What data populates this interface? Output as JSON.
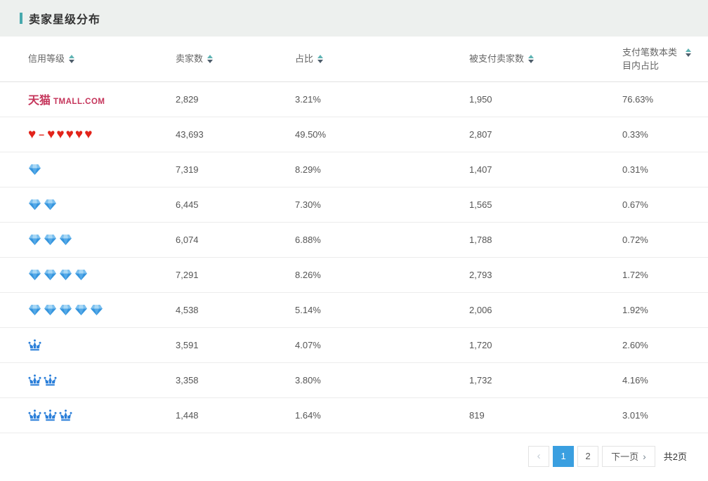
{
  "page": {
    "title": "卖家星级分布",
    "accent_color": "#47a9ad"
  },
  "table": {
    "headers": [
      {
        "label": "信用等级",
        "sortable": true
      },
      {
        "label": "卖家数",
        "sortable": true
      },
      {
        "label": "占比",
        "sortable": true
      },
      {
        "label": "被支付卖家数",
        "sortable": true
      },
      {
        "label": "支付笔数本类目内占比",
        "sortable": true
      }
    ],
    "rows": [
      {
        "rating": {
          "type": "tmall",
          "icon": "tmall-logo",
          "cn": "天猫",
          "en": "TMALL.COM"
        },
        "sellers": "2,829",
        "share": "3.21%",
        "paid_sellers": "1,950",
        "category_pay_share": "76.63%"
      },
      {
        "rating": {
          "type": "heart",
          "icon": "heart-icon",
          "from": 1,
          "to": 5,
          "separator": "–"
        },
        "sellers": "43,693",
        "share": "49.50%",
        "paid_sellers": "2,807",
        "category_pay_share": "0.33%"
      },
      {
        "rating": {
          "type": "diamond",
          "icon": "diamond-icon",
          "count": 1
        },
        "sellers": "7,319",
        "share": "8.29%",
        "paid_sellers": "1,407",
        "category_pay_share": "0.31%"
      },
      {
        "rating": {
          "type": "diamond",
          "icon": "diamond-icon",
          "count": 2
        },
        "sellers": "6,445",
        "share": "7.30%",
        "paid_sellers": "1,565",
        "category_pay_share": "0.67%"
      },
      {
        "rating": {
          "type": "diamond",
          "icon": "diamond-icon",
          "count": 3
        },
        "sellers": "6,074",
        "share": "6.88%",
        "paid_sellers": "1,788",
        "category_pay_share": "0.72%"
      },
      {
        "rating": {
          "type": "diamond",
          "icon": "diamond-icon",
          "count": 4
        },
        "sellers": "7,291",
        "share": "8.26%",
        "paid_sellers": "2,793",
        "category_pay_share": "1.72%"
      },
      {
        "rating": {
          "type": "diamond",
          "icon": "diamond-icon",
          "count": 5
        },
        "sellers": "4,538",
        "share": "5.14%",
        "paid_sellers": "2,006",
        "category_pay_share": "1.92%"
      },
      {
        "rating": {
          "type": "crown",
          "icon": "crown-icon",
          "count": 1
        },
        "sellers": "3,591",
        "share": "4.07%",
        "paid_sellers": "1,720",
        "category_pay_share": "2.60%"
      },
      {
        "rating": {
          "type": "crown",
          "icon": "crown-icon",
          "count": 2
        },
        "sellers": "3,358",
        "share": "3.80%",
        "paid_sellers": "1,732",
        "category_pay_share": "4.16%"
      },
      {
        "rating": {
          "type": "crown",
          "icon": "crown-icon",
          "count": 3
        },
        "sellers": "1,448",
        "share": "1.64%",
        "paid_sellers": "819",
        "category_pay_share": "3.01%"
      }
    ]
  },
  "pagination": {
    "prev_icon": "‹",
    "pages": [
      "1",
      "2"
    ],
    "active_page": "1",
    "next_label": "下一页",
    "next_icon": "›",
    "total_text": "共2页"
  },
  "colors": {
    "active_page_bg": "#3a9fe0",
    "heart": "#e2231a",
    "diamond": "#3695dd",
    "crown": "#2b7fd9",
    "tmall_logo": "#c5345a"
  }
}
